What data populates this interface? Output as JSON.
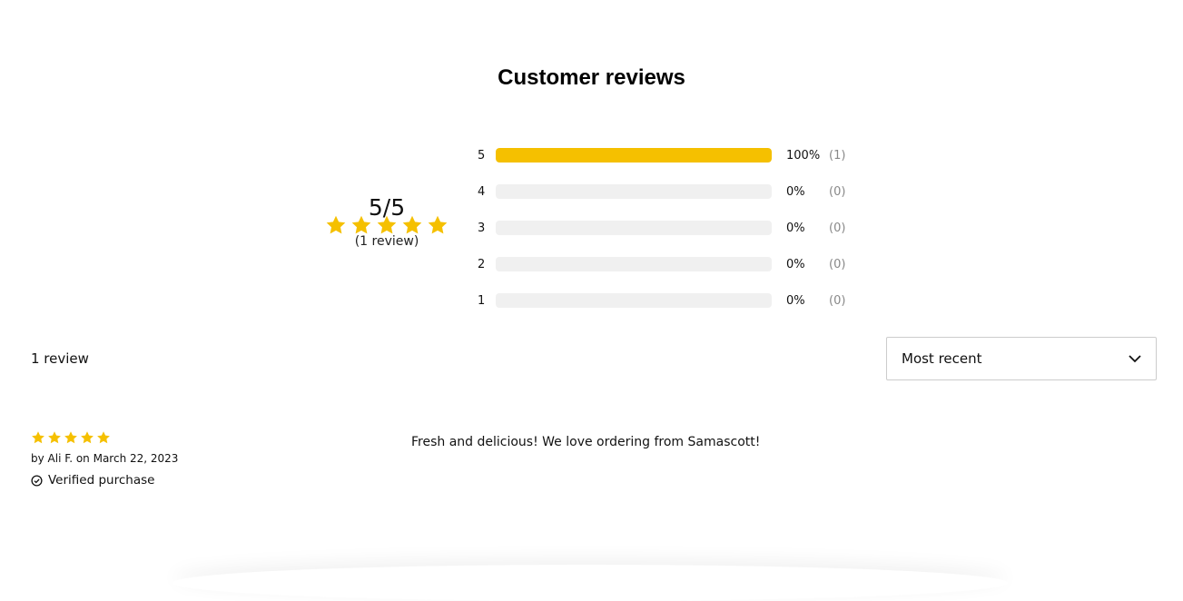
{
  "title": "Customer reviews",
  "summary": {
    "average": "5/5",
    "rating": 5,
    "count_label": "(1 review)"
  },
  "distribution": [
    {
      "stars": "5",
      "percent": 100,
      "percent_label": "100%",
      "count": "(1)"
    },
    {
      "stars": "4",
      "percent": 0,
      "percent_label": "0%",
      "count": "(0)"
    },
    {
      "stars": "3",
      "percent": 0,
      "percent_label": "0%",
      "count": "(0)"
    },
    {
      "stars": "2",
      "percent": 0,
      "percent_label": "0%",
      "count": "(0)"
    },
    {
      "stars": "1",
      "percent": 0,
      "percent_label": "0%",
      "count": "(0)"
    }
  ],
  "total_label": "1 review",
  "sort": {
    "selected": "Most recent"
  },
  "reviews": [
    {
      "rating": 5,
      "byline": "by Ali F. on March 22, 2023",
      "verified": "Verified purchase",
      "text": "Fresh and delicious! We love ordering from Samascott!"
    }
  ],
  "colors": {
    "star": "#f5c000",
    "bar_empty": "#f0f0f0"
  }
}
